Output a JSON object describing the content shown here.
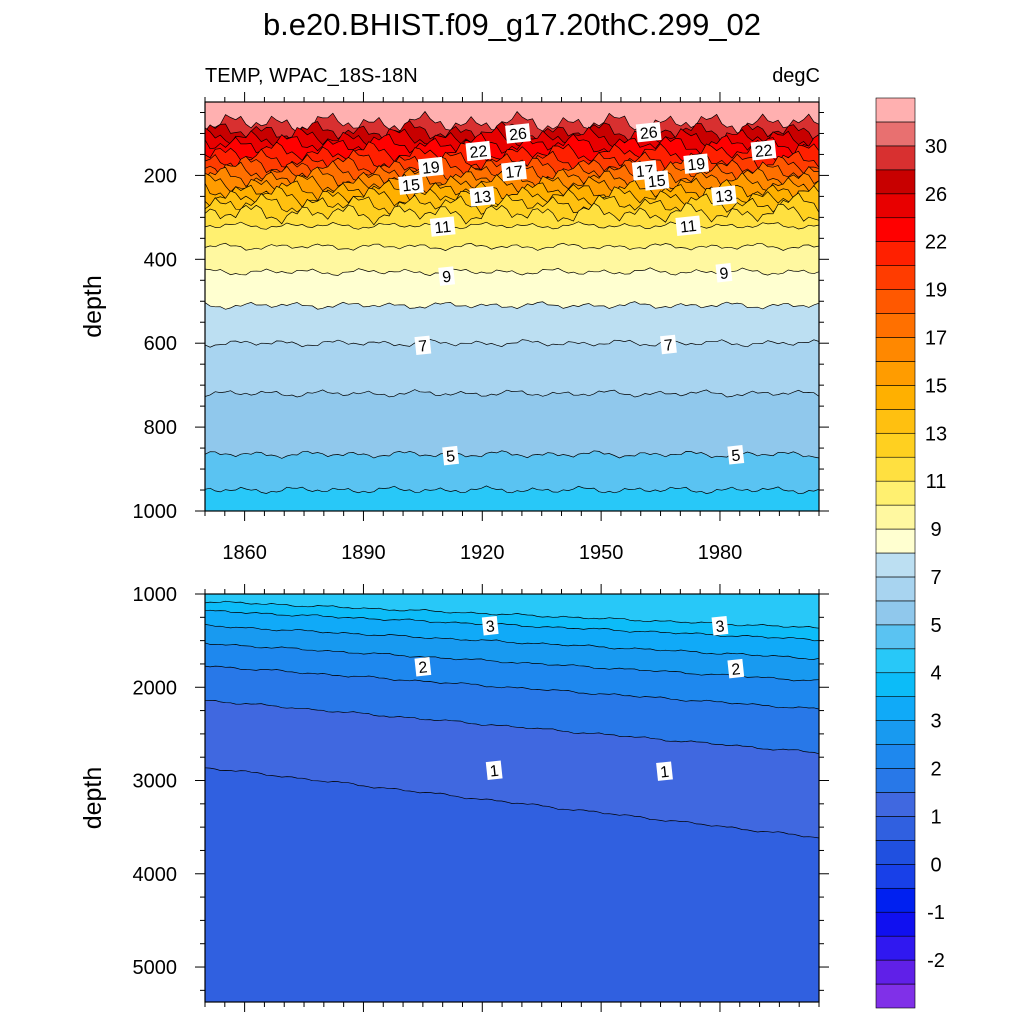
{
  "title": "b.e20.BHIST.f09_g17.20thC.299_02",
  "chart_data": {
    "type": "heatmap",
    "variable": "TEMP, WPAC_18S-18N",
    "units": "degC",
    "colorbar": {
      "levels": [
        -3,
        -2.5,
        -2,
        -1.5,
        -1,
        -0.5,
        0,
        0.5,
        1,
        1.5,
        2,
        2.5,
        3,
        3.5,
        4,
        4.5,
        5,
        6,
        7,
        8,
        9,
        10,
        11,
        12,
        13,
        14,
        15,
        16,
        17,
        18,
        19,
        20,
        22,
        24,
        26,
        28,
        30,
        32,
        34
      ],
      "colors": [
        "#8030e8",
        "#6020e8",
        "#3018f0",
        "#1010f0",
        "#0020f0",
        "#1840e8",
        "#2050e0",
        "#3060e0",
        "#4068e0",
        "#2878e8",
        "#1e88ee",
        "#189af0",
        "#10aaf8",
        "#0cbcf8",
        "#28c8f8",
        "#5ac3f2",
        "#90c8ec",
        "#a8d4f0",
        "#bcdff2",
        "#ffffd0",
        "#fff8a0",
        "#fff070",
        "#ffe040",
        "#ffd020",
        "#ffc010",
        "#ffb000",
        "#ff9c00",
        "#ff8800",
        "#ff7000",
        "#ff5800",
        "#ff3c00",
        "#ff2000",
        "#ff0000",
        "#e80000",
        "#c80000",
        "#d83030",
        "#e87070",
        "#ffb0b0"
      ],
      "tick_labels": [
        "-2",
        "-1",
        "0",
        "1",
        "2",
        "3",
        "4",
        "5",
        "7",
        "9",
        "11",
        "13",
        "15",
        "17",
        "19",
        "22",
        "26",
        "30"
      ],
      "tick_values": [
        -2,
        -1,
        0,
        1,
        2,
        3,
        4,
        5,
        7,
        9,
        11,
        13,
        15,
        17,
        19,
        22,
        26,
        30
      ]
    },
    "panels": [
      {
        "ylabel": "depth",
        "xlim": [
          1850,
          2005
        ],
        "ylim": [
          25,
          1000
        ],
        "y_reversed": true,
        "x_ticks": [
          1860,
          1890,
          1920,
          1950,
          1980
        ],
        "x_tick_labels": [
          "1860",
          "1890",
          "1920",
          "1950",
          "1980"
        ],
        "y_ticks": [
          200,
          400,
          600,
          800,
          1000
        ],
        "y_tick_labels": [
          "200",
          "400",
          "600",
          "800",
          "1000"
        ],
        "isotherms": [
          {
            "temp": 30,
            "depth": 75
          },
          {
            "temp": 28,
            "depth": 95
          },
          {
            "temp": 26,
            "depth": 110
          },
          {
            "temp": 24,
            "depth": 125
          },
          {
            "temp": 22,
            "depth": 145
          },
          {
            "temp": 20,
            "depth": 165
          },
          {
            "temp": 19,
            "depth": 178
          },
          {
            "temp": 18,
            "depth": 192
          },
          {
            "temp": 17,
            "depth": 205
          },
          {
            "temp": 16,
            "depth": 220
          },
          {
            "temp": 15,
            "depth": 235
          },
          {
            "temp": 14,
            "depth": 250
          },
          {
            "temp": 13,
            "depth": 268
          },
          {
            "temp": 12,
            "depth": 290
          },
          {
            "temp": 11,
            "depth": 320
          },
          {
            "temp": 10,
            "depth": 370
          },
          {
            "temp": 9,
            "depth": 430
          },
          {
            "temp": 8,
            "depth": 510
          },
          {
            "temp": 7,
            "depth": 600
          },
          {
            "temp": 6,
            "depth": 720
          },
          {
            "temp": 5,
            "depth": 865
          },
          {
            "temp": 4.5,
            "depth": 950
          }
        ],
        "contour_labels": [
          {
            "text": "26",
            "year": 1929,
            "depth": 100
          },
          {
            "text": "26",
            "year": 1962,
            "depth": 97
          },
          {
            "text": "22",
            "year": 1919,
            "depth": 142
          },
          {
            "text": "22",
            "year": 1991,
            "depth": 140
          },
          {
            "text": "19",
            "year": 1907,
            "depth": 180
          },
          {
            "text": "19",
            "year": 1974,
            "depth": 172
          },
          {
            "text": "17",
            "year": 1928,
            "depth": 190
          },
          {
            "text": "17",
            "year": 1961,
            "depth": 188
          },
          {
            "text": "15",
            "year": 1902,
            "depth": 222
          },
          {
            "text": "15",
            "year": 1964,
            "depth": 212
          },
          {
            "text": "13",
            "year": 1920,
            "depth": 250
          },
          {
            "text": "13",
            "year": 1981,
            "depth": 248
          },
          {
            "text": "11",
            "year": 1910,
            "depth": 322
          },
          {
            "text": "11",
            "year": 1972,
            "depth": 320
          },
          {
            "text": "9",
            "year": 1911,
            "depth": 440
          },
          {
            "text": "9",
            "year": 1981,
            "depth": 432
          },
          {
            "text": "7",
            "year": 1905,
            "depth": 605
          },
          {
            "text": "7",
            "year": 1967,
            "depth": 603
          },
          {
            "text": "5",
            "year": 1912,
            "depth": 868
          },
          {
            "text": "5",
            "year": 1984,
            "depth": 866
          }
        ]
      },
      {
        "ylabel": "depth",
        "xlim": [
          1850,
          2005
        ],
        "ylim": [
          1000,
          5375
        ],
        "y_reversed": true,
        "x_ticks": [
          1860,
          1890,
          1920,
          1950,
          1980
        ],
        "x_tick_labels": [],
        "y_ticks": [
          1000,
          2000,
          3000,
          4000,
          5000
        ],
        "y_tick_labels": [
          "1000",
          "2000",
          "3000",
          "4000",
          "5000"
        ],
        "isotherms": [
          {
            "temp": 4,
            "depth": 1080
          },
          {
            "temp": 3.5,
            "depth": 1180
          },
          {
            "temp": 3,
            "depth": 1340
          },
          {
            "temp": 2.5,
            "depth": 1530
          },
          {
            "temp": 2,
            "depth": 1770
          },
          {
            "temp": 1.5,
            "depth": 2140
          },
          {
            "temp": 1,
            "depth": 2860
          }
        ],
        "contour_labels": [
          {
            "text": "3",
            "year": 1922,
            "depth": 1340
          },
          {
            "text": "3",
            "year": 1980,
            "depth": 1340
          },
          {
            "text": "2",
            "year": 1905,
            "depth": 1780
          },
          {
            "text": "2",
            "year": 1984,
            "depth": 1800
          },
          {
            "text": "1",
            "year": 1923,
            "depth": 2890
          },
          {
            "text": "1",
            "year": 1966,
            "depth": 2900
          }
        ]
      }
    ]
  }
}
